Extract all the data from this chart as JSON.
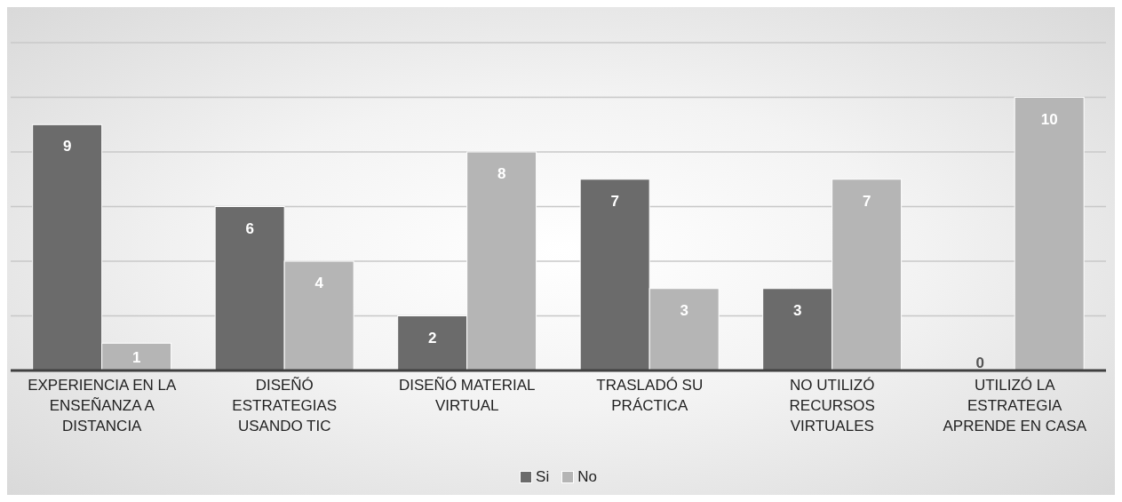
{
  "chart_data": {
    "type": "bar",
    "categories": [
      "EXPERIENCIA EN LA ENSEÑANZA A DISTANCIA",
      "DISEÑÓ ESTRATEGIAS USANDO TIC",
      "DISEÑÓ MATERIAL VIRTUAL",
      "TRASLADÓ SU PRÁCTICA",
      "NO UTILIZÓ RECURSOS VIRTUALES",
      "UTILIZÓ LA ESTRATEGIA APRENDE EN CASA"
    ],
    "series": [
      {
        "name": "Si",
        "color": "#6b6b6b",
        "values": [
          9,
          6,
          2,
          7,
          3,
          0
        ]
      },
      {
        "name": "No",
        "color": "#b5b5b5",
        "values": [
          1,
          4,
          8,
          3,
          7,
          10
        ]
      }
    ],
    "ylim": [
      0,
      12
    ],
    "yticks": [
      {
        "value": 0,
        "label": null
      },
      {
        "value": 2,
        "label": null
      },
      {
        "value": 4,
        "label": null
      },
      {
        "value": 6,
        "label": null
      },
      {
        "value": 8,
        "label": null
      },
      {
        "value": 10,
        "label": null
      },
      {
        "value": 12,
        "label": null
      }
    ],
    "grid": "y",
    "legend": "bottom",
    "tick_labels": "x",
    "data_labels": true
  }
}
